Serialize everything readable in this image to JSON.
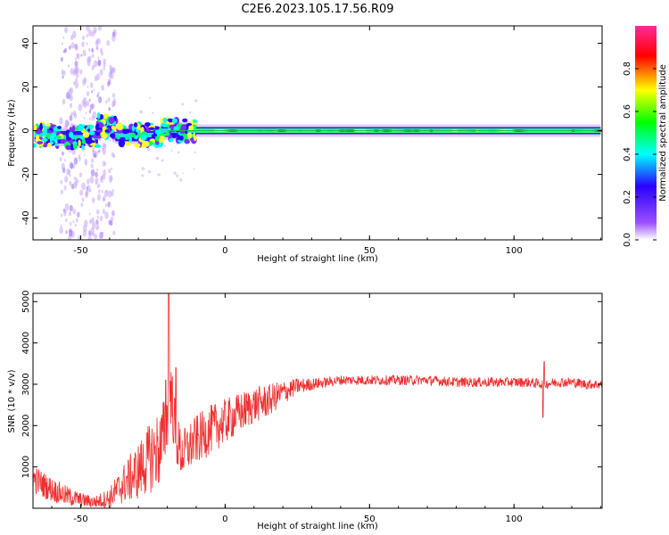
{
  "title": "C2E6.2023.105.17.56.R09",
  "chart_data": [
    {
      "type": "heatmap",
      "title": "",
      "xlabel": "Height of straight line (km)",
      "ylabel": "Frequency (Hz)",
      "xlim": [
        -66.5,
        130.5
      ],
      "ylim": [
        -50,
        48
      ],
      "xticks": [
        -50,
        0,
        50,
        100
      ],
      "yticks": [
        -40,
        -20,
        0,
        20,
        40
      ],
      "colorbar": {
        "label": "Normalized spectral amplitude",
        "range": [
          0.0,
          1.0
        ],
        "ticks": [
          0.0,
          0.2,
          0.4,
          0.6,
          0.8
        ],
        "colors": [
          "#ffffff",
          "#9a50ff",
          "#2a00ff",
          "#00ffff",
          "#00ff00",
          "#ffff00",
          "#ff0000",
          "#ff2a9a"
        ]
      },
      "trace": {
        "segments": [
          {
            "x": [
              -66,
              -58
            ],
            "freq_hz": -2,
            "amplitude": 0.5
          },
          {
            "x": [
              -58,
              -44
            ],
            "freq_hz": -3,
            "amplitude": 0.6
          },
          {
            "x": [
              -44,
              -38
            ],
            "freq_hz": 2,
            "amplitude": 0.55
          },
          {
            "x": [
              -38,
              -22
            ],
            "freq_hz": -2,
            "amplitude": 0.55
          },
          {
            "x": [
              -22,
              -10
            ],
            "freq_hz": 0,
            "amplitude": 0.7
          },
          {
            "x": [
              -10,
              130
            ],
            "freq_hz": 0,
            "amplitude": 0.9
          }
        ],
        "scatter_region_km": [
          -57,
          -38
        ]
      }
    },
    {
      "type": "line",
      "title": "",
      "xlabel": "Height of straight line (km)",
      "ylabel": "SNR (10 * v/v)",
      "xlim": [
        -66.5,
        130.5
      ],
      "ylim": [
        0,
        5200
      ],
      "xticks": [
        -50,
        0,
        50,
        100
      ],
      "yticks": [
        1000,
        2000,
        3000,
        4000,
        5000
      ],
      "series": [
        {
          "name": "SNR",
          "color": "#ee3030",
          "x": [
            -66,
            -60,
            -55,
            -50,
            -45,
            -40,
            -35,
            -30,
            -25,
            -22,
            -20,
            -19,
            -17,
            -15,
            -10,
            -5,
            0,
            5,
            10,
            15,
            20,
            25,
            30,
            35,
            40,
            45,
            50,
            60,
            70,
            80,
            90,
            100,
            105,
            110,
            115,
            120,
            125,
            130
          ],
          "y": [
            700,
            450,
            300,
            200,
            150,
            250,
            600,
            900,
            1300,
            1500,
            2200,
            3000,
            1700,
            1300,
            1650,
            1900,
            2100,
            2300,
            2500,
            2600,
            2800,
            2950,
            3000,
            3050,
            3100,
            3100,
            3100,
            3100,
            3100,
            3050,
            3050,
            3050,
            3050,
            3000,
            3050,
            3050,
            3000,
            3000
          ],
          "noise": [
            350,
            300,
            250,
            180,
            150,
            250,
            500,
            700,
            900,
            1000,
            800,
            900,
            700,
            600,
            600,
            600,
            550,
            500,
            450,
            400,
            300,
            200,
            150,
            120,
            120,
            120,
            120,
            120,
            120,
            120,
            120,
            120,
            120,
            120,
            120,
            120,
            120,
            120
          ],
          "spikes": [
            {
              "x": -19.5,
              "y": 5200
            },
            {
              "x": -17,
              "y": 3400
            },
            {
              "x": -20.5,
              "y": 3100
            },
            {
              "x": 110,
              "y": 2200
            },
            {
              "x": 110.5,
              "y": 3550
            }
          ]
        }
      ]
    }
  ]
}
